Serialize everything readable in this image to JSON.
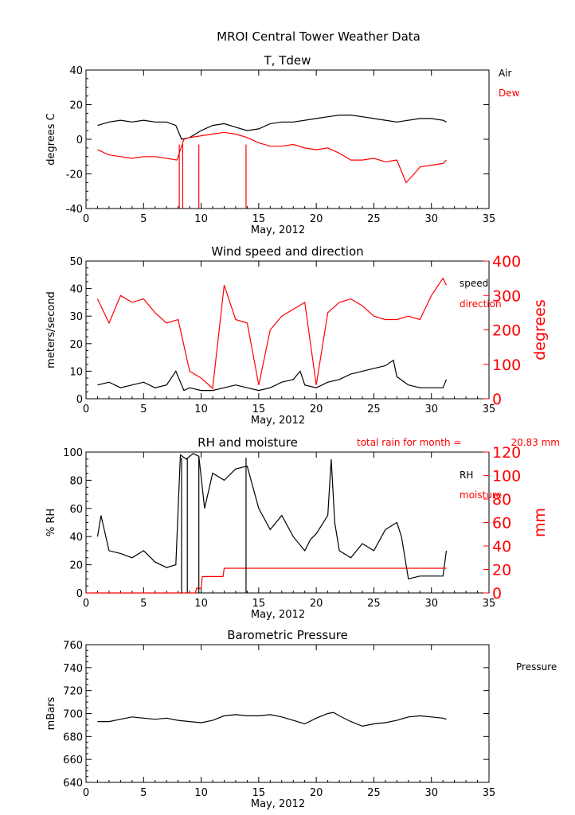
{
  "chart_data": {
    "suptitle": "MROI Central Tower Weather Data",
    "panels": [
      {
        "id": "temp",
        "type": "line",
        "title": "T, Tdew",
        "xlabel": "May, 2012",
        "ylabel": "degrees C",
        "xlim": [
          0,
          35
        ],
        "ylim": [
          -40,
          40
        ],
        "xticks": [
          0,
          5,
          10,
          15,
          20,
          25,
          30,
          35
        ],
        "yticks": [
          -40,
          -20,
          0,
          20,
          40
        ],
        "series": [
          {
            "name": "Air",
            "color": "#000000",
            "x": [
              1,
              2,
              3,
              4,
              5,
              6,
              7,
              7.8,
              8.3,
              9,
              10,
              11,
              12,
              13,
              14,
              15,
              16,
              17,
              18,
              19,
              20,
              21,
              22,
              23,
              24,
              25,
              26,
              27,
              28,
              29,
              30,
              31,
              31.3
            ],
            "y": [
              8,
              10,
              11,
              10,
              11,
              10,
              10,
              8,
              0,
              1,
              5,
              8,
              9,
              7,
              5,
              6,
              9,
              10,
              10,
              11,
              12,
              13,
              14,
              14,
              13,
              12,
              11,
              10,
              11,
              12,
              12,
              11,
              10
            ]
          },
          {
            "name": "Dew",
            "color": "#ff0000",
            "x": [
              1,
              2,
              3,
              4,
              5,
              6,
              7,
              7.9,
              8.5,
              9,
              10,
              11,
              12,
              13,
              14,
              15,
              16,
              17,
              18,
              19,
              20,
              21,
              22,
              23,
              24,
              25,
              26,
              27,
              27.8,
              28.5,
              29,
              30,
              31,
              31.3
            ],
            "y": [
              -6,
              -9,
              -10,
              -11,
              -10,
              -10,
              -11,
              -12,
              0,
              1,
              2,
              3,
              4,
              3,
              1,
              -2,
              -4,
              -4,
              -3,
              -5,
              -6,
              -5,
              -8,
              -12,
              -12,
              -11,
              -13,
              -12,
              -25,
              -20,
              -16,
              -15,
              -14,
              -12
            ]
          }
        ],
        "spikes": [
          {
            "color": "#ff0000",
            "x": [
              8.1,
              8.4,
              9.8,
              13.9
            ],
            "from": -3,
            "to": -40
          }
        ]
      },
      {
        "id": "wind",
        "type": "line",
        "title": "Wind speed and direction",
        "xlabel": "May, 2012",
        "ylabel": "meters/second",
        "ylabel_right": "degrees",
        "xlim": [
          0,
          35
        ],
        "ylim": [
          0,
          50
        ],
        "ylim_right": [
          0,
          400
        ],
        "xticks": [
          0,
          5,
          10,
          15,
          20,
          25,
          30,
          35
        ],
        "yticks": [
          0,
          10,
          20,
          30,
          40,
          50
        ],
        "yticks_right": [
          0,
          100,
          200,
          300,
          400
        ],
        "series": [
          {
            "name": "speed",
            "color": "#000000",
            "axis": "left",
            "x": [
              1,
              2,
              3,
              4,
              5,
              6,
              7,
              7.8,
              8.5,
              9,
              10,
              11,
              12,
              13,
              14,
              15,
              16,
              17,
              18,
              18.6,
              19,
              20,
              21,
              22,
              23,
              24,
              25,
              26,
              26.7,
              27,
              28,
              29,
              30,
              31,
              31.3
            ],
            "y": [
              5,
              6,
              4,
              5,
              6,
              4,
              5,
              10,
              3,
              4,
              3,
              3,
              4,
              5,
              4,
              3,
              4,
              6,
              7,
              10,
              5,
              4,
              6,
              7,
              9,
              10,
              11,
              12,
              14,
              8,
              5,
              4,
              4,
              4,
              7
            ]
          },
          {
            "name": "direction",
            "color": "#ff0000",
            "axis": "right",
            "x": [
              1,
              2,
              3,
              4,
              5,
              6,
              7,
              8,
              9,
              10,
              11,
              12,
              13,
              14,
              15,
              16,
              17,
              18,
              19,
              20,
              21,
              22,
              23,
              24,
              25,
              26,
              27,
              28,
              29,
              30,
              31,
              31.3
            ],
            "y": [
              290,
              220,
              300,
              280,
              290,
              250,
              220,
              230,
              80,
              60,
              30,
              330,
              230,
              220,
              40,
              200,
              240,
              260,
              280,
              40,
              250,
              280,
              290,
              270,
              240,
              230,
              230,
              240,
              230,
              300,
              350,
              330
            ]
          }
        ]
      },
      {
        "id": "rh",
        "type": "line",
        "title": "RH and moisture",
        "annotation_label": "total rain for month =",
        "annotation_value": "20.83 mm",
        "xlabel": "May, 2012",
        "ylabel": "% RH",
        "ylabel_right": "mm",
        "xlim": [
          0,
          35
        ],
        "ylim": [
          0,
          100
        ],
        "ylim_right": [
          0,
          120
        ],
        "xticks": [
          0,
          5,
          10,
          15,
          20,
          25,
          30,
          35
        ],
        "yticks": [
          0,
          20,
          40,
          60,
          80,
          100
        ],
        "yticks_right": [
          0,
          20,
          40,
          60,
          80,
          100,
          120
        ],
        "series": [
          {
            "name": "RH",
            "color": "#000000",
            "axis": "left",
            "x": [
              1,
              1.3,
              2,
              3,
              4,
              5,
              6,
              7,
              7.8,
              8.2,
              8.7,
              9.3,
              9.8,
              10.3,
              11,
              12,
              13,
              14,
              15,
              16,
              17,
              18,
              19,
              19.5,
              20,
              21,
              21.3,
              21.6,
              22,
              23,
              24,
              25,
              26,
              27,
              27.4,
              28,
              29,
              30,
              31,
              31.3
            ],
            "y": [
              40,
              55,
              30,
              28,
              25,
              30,
              22,
              18,
              20,
              98,
              95,
              99,
              97,
              60,
              85,
              80,
              88,
              90,
              60,
              45,
              55,
              40,
              30,
              38,
              42,
              55,
              95,
              50,
              30,
              25,
              35,
              30,
              45,
              50,
              40,
              10,
              12,
              12,
              12,
              30
            ]
          },
          {
            "name": "moisture",
            "color": "#ff0000",
            "axis": "right",
            "x": [
              0,
              9.5,
              9.6,
              10,
              10.1,
              11.9,
              12,
              31.3
            ],
            "y": [
              0,
              0,
              4,
              4,
              14,
              14,
              21,
              21
            ]
          }
        ],
        "spikes": [
          {
            "color": "#000000",
            "x": [
              8.3,
              8.8,
              9.8,
              13.9
            ],
            "from": 96,
            "to": 0
          }
        ]
      },
      {
        "id": "pressure",
        "type": "line",
        "title": "Barometric Pressure",
        "xlabel": "May, 2012",
        "ylabel": "mBars",
        "xlim": [
          0,
          35
        ],
        "ylim": [
          640,
          760
        ],
        "xticks": [
          0,
          5,
          10,
          15,
          20,
          25,
          30,
          35
        ],
        "yticks": [
          640,
          660,
          680,
          700,
          720,
          740,
          760
        ],
        "series": [
          {
            "name": "Pressure",
            "color": "#000000",
            "x": [
              1,
              2,
              3,
              4,
              5,
              6,
              7,
              8,
              9,
              10,
              11,
              12,
              13,
              14,
              15,
              16,
              17,
              18,
              19,
              20,
              21,
              21.5,
              22,
              23,
              24,
              25,
              26,
              27,
              28,
              29,
              30,
              31,
              31.3
            ],
            "y": [
              693,
              693,
              695,
              697,
              696,
              695,
              696,
              694,
              693,
              692,
              694,
              698,
              699,
              698,
              698,
              699,
              697,
              694,
              691,
              696,
              700,
              701,
              698,
              693,
              689,
              691,
              692,
              694,
              697,
              698,
              697,
              696,
              695
            ]
          }
        ]
      }
    ]
  }
}
